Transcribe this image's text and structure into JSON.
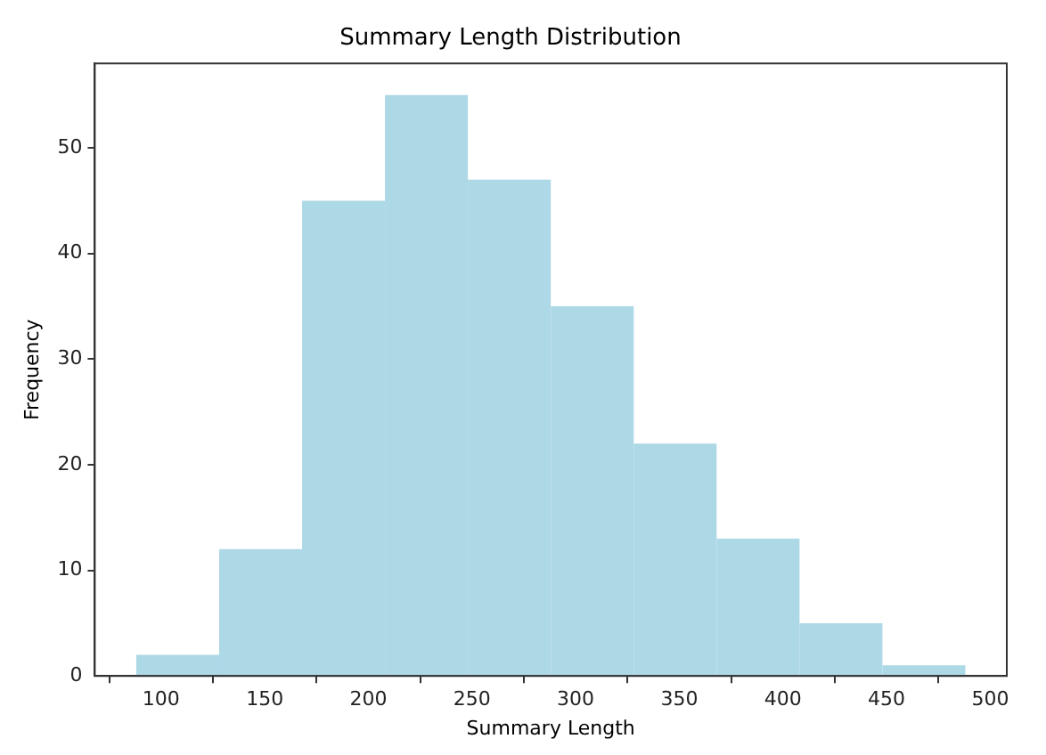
{
  "chart_data": {
    "type": "histogram",
    "title": "Summary Length Distribution",
    "xlabel": "Summary Length",
    "ylabel": "Frequency",
    "bins": [
      88,
      128,
      168,
      208,
      248,
      288,
      328,
      368,
      408,
      448,
      488
    ],
    "values": [
      2,
      12,
      45,
      55,
      47,
      35,
      22,
      13,
      5,
      1
    ],
    "color": "#add8e6",
    "xlim": [
      68,
      508
    ],
    "xticks": [
      100,
      150,
      200,
      250,
      300,
      350,
      400,
      450,
      500
    ],
    "ylim": [
      0,
      58
    ],
    "yticks": [
      0,
      10,
      20,
      30,
      40,
      50
    ],
    "grid": false,
    "legend": false
  }
}
